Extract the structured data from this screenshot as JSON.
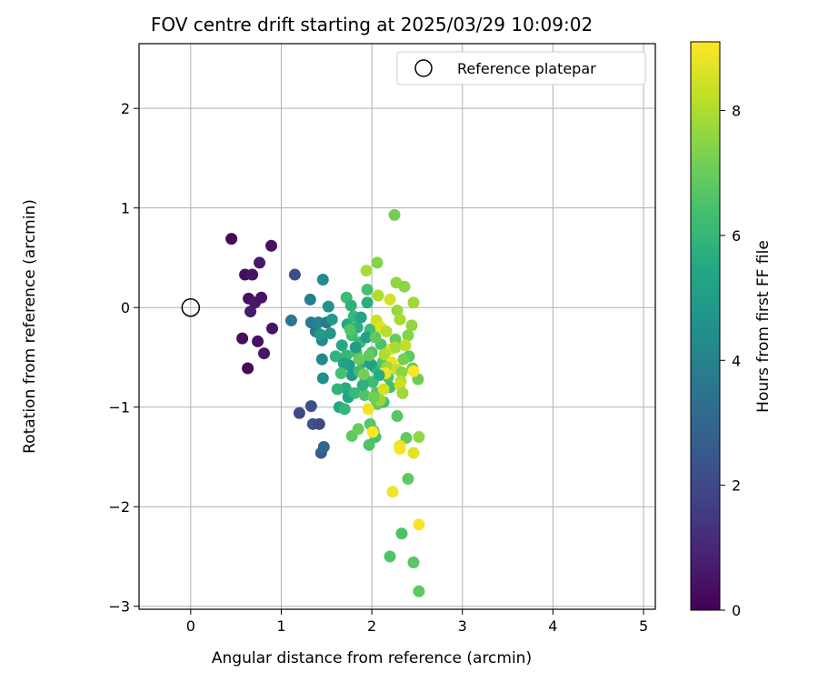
{
  "chart_data": {
    "type": "scatter",
    "title": "FOV centre drift starting at 2025/03/29 10:09:02",
    "xlabel": "Angular distance from reference (arcmin)",
    "ylabel": "Rotation from reference (arcmin)",
    "xlim": [
      -0.57,
      5.13
    ],
    "ylim": [
      -3.03,
      2.65
    ],
    "xticks": [
      0,
      1,
      2,
      3,
      4,
      5
    ],
    "yticks": [
      -3,
      -2,
      -1,
      0,
      1,
      2
    ],
    "xtick_labels": [
      "0",
      "1",
      "2",
      "3",
      "4",
      "5"
    ],
    "ytick_labels": [
      "−3",
      "−2",
      "−1",
      "0",
      "1",
      "2"
    ],
    "grid": true,
    "colormap": "viridis",
    "colorbar": {
      "label": "Hours from first FF file",
      "range": [
        0,
        9.1
      ],
      "ticks": [
        0,
        2,
        4,
        6,
        8
      ],
      "tick_labels": [
        "0",
        "2",
        "4",
        "6",
        "8"
      ]
    },
    "legend": {
      "position": "top-right",
      "entries": [
        "Reference platepar"
      ]
    },
    "reference_point": {
      "x": 0,
      "y": 0,
      "label": "Reference platepar"
    },
    "points": [
      {
        "x": 0.45,
        "y": 0.69,
        "t": 0.2
      },
      {
        "x": 0.89,
        "y": 0.62,
        "t": 0.4
      },
      {
        "x": 0.6,
        "y": 0.33,
        "t": 0.3
      },
      {
        "x": 0.68,
        "y": 0.33,
        "t": 0.5
      },
      {
        "x": 0.76,
        "y": 0.45,
        "t": 0.6
      },
      {
        "x": 0.64,
        "y": 0.09,
        "t": 0.4
      },
      {
        "x": 0.71,
        "y": 0.05,
        "t": 0.6
      },
      {
        "x": 0.78,
        "y": 0.1,
        "t": 0.5
      },
      {
        "x": 0.66,
        "y": -0.04,
        "t": 0.7
      },
      {
        "x": 0.9,
        "y": -0.21,
        "t": 0.5
      },
      {
        "x": 0.57,
        "y": -0.31,
        "t": 0.3
      },
      {
        "x": 0.74,
        "y": -0.34,
        "t": 0.4
      },
      {
        "x": 0.81,
        "y": -0.46,
        "t": 0.6
      },
      {
        "x": 0.63,
        "y": -0.61,
        "t": 0.2
      },
      {
        "x": 1.15,
        "y": 0.33,
        "t": 2.2
      },
      {
        "x": 1.11,
        "y": -0.13,
        "t": 3.6
      },
      {
        "x": 1.2,
        "y": -1.06,
        "t": 2.0
      },
      {
        "x": 1.33,
        "y": -0.99,
        "t": 2.2
      },
      {
        "x": 1.35,
        "y": -1.17,
        "t": 2.3
      },
      {
        "x": 1.42,
        "y": -1.17,
        "t": 2.0
      },
      {
        "x": 1.44,
        "y": -1.46,
        "t": 2.6
      },
      {
        "x": 1.47,
        "y": -1.4,
        "t": 3.0
      },
      {
        "x": 1.32,
        "y": 0.08,
        "t": 3.9
      },
      {
        "x": 1.46,
        "y": 0.28,
        "t": 4.3
      },
      {
        "x": 1.52,
        "y": 0.01,
        "t": 4.6
      },
      {
        "x": 1.33,
        "y": -0.15,
        "t": 3.7
      },
      {
        "x": 1.38,
        "y": -0.24,
        "t": 3.8
      },
      {
        "x": 1.41,
        "y": -0.15,
        "t": 4.1
      },
      {
        "x": 1.45,
        "y": -0.33,
        "t": 4.3
      },
      {
        "x": 1.5,
        "y": -0.15,
        "t": 3.6
      },
      {
        "x": 1.54,
        "y": -0.26,
        "t": 4.8
      },
      {
        "x": 1.45,
        "y": -0.52,
        "t": 4.2
      },
      {
        "x": 1.46,
        "y": -0.71,
        "t": 4.5
      },
      {
        "x": 1.43,
        "y": -0.27,
        "t": 5.0
      },
      {
        "x": 1.6,
        "y": -0.49,
        "t": 5.9
      },
      {
        "x": 1.67,
        "y": -0.38,
        "t": 5.5
      },
      {
        "x": 1.72,
        "y": -0.48,
        "t": 6.1
      },
      {
        "x": 1.75,
        "y": -0.58,
        "t": 5.0
      },
      {
        "x": 1.78,
        "y": -0.68,
        "t": 4.9
      },
      {
        "x": 1.71,
        "y": -0.81,
        "t": 5.6
      },
      {
        "x": 1.62,
        "y": -0.82,
        "t": 5.9
      },
      {
        "x": 1.74,
        "y": -0.9,
        "t": 5.3
      },
      {
        "x": 1.64,
        "y": -1.0,
        "t": 5.5
      },
      {
        "x": 1.7,
        "y": -1.02,
        "t": 6.0
      },
      {
        "x": 1.72,
        "y": 0.1,
        "t": 6.2
      },
      {
        "x": 1.77,
        "y": 0.02,
        "t": 5.8
      },
      {
        "x": 1.73,
        "y": -0.17,
        "t": 5.4
      },
      {
        "x": 1.8,
        "y": -0.09,
        "t": 6.0
      },
      {
        "x": 1.84,
        "y": -0.2,
        "t": 5.7
      },
      {
        "x": 1.78,
        "y": -0.28,
        "t": 6.3
      },
      {
        "x": 1.87,
        "y": -0.35,
        "t": 6.1
      },
      {
        "x": 1.83,
        "y": -0.45,
        "t": 6.4
      },
      {
        "x": 1.9,
        "y": -0.55,
        "t": 5.6
      },
      {
        "x": 1.86,
        "y": -0.64,
        "t": 6.2
      },
      {
        "x": 1.93,
        "y": -0.72,
        "t": 6.3
      },
      {
        "x": 1.81,
        "y": -0.86,
        "t": 6.1
      },
      {
        "x": 1.92,
        "y": -0.88,
        "t": 6.6
      },
      {
        "x": 1.95,
        "y": 0.05,
        "t": 5.7
      },
      {
        "x": 1.95,
        "y": 0.18,
        "t": 6.4
      },
      {
        "x": 1.98,
        "y": -0.22,
        "t": 6.2
      },
      {
        "x": 2.0,
        "y": -0.45,
        "t": 6.5
      },
      {
        "x": 2.03,
        "y": -0.6,
        "t": 6.0
      },
      {
        "x": 2.01,
        "y": -0.75,
        "t": 6.3
      },
      {
        "x": 2.05,
        "y": -0.86,
        "t": 6.6
      },
      {
        "x": 2.06,
        "y": -0.97,
        "t": 6.9
      },
      {
        "x": 1.98,
        "y": -1.17,
        "t": 6.7
      },
      {
        "x": 2.02,
        "y": -1.24,
        "t": 6.5
      },
      {
        "x": 1.97,
        "y": -1.38,
        "t": 6.6
      },
      {
        "x": 2.04,
        "y": -1.3,
        "t": 6.4
      },
      {
        "x": 1.78,
        "y": -1.29,
        "t": 6.8
      },
      {
        "x": 1.85,
        "y": -1.22,
        "t": 7.0
      },
      {
        "x": 2.1,
        "y": -0.37,
        "t": 6.5
      },
      {
        "x": 2.12,
        "y": -0.55,
        "t": 6.7
      },
      {
        "x": 2.18,
        "y": -0.7,
        "t": 6.6
      },
      {
        "x": 2.2,
        "y": -0.8,
        "t": 6.3
      },
      {
        "x": 2.13,
        "y": -0.95,
        "t": 6.4
      },
      {
        "x": 2.28,
        "y": -1.09,
        "t": 6.7
      },
      {
        "x": 2.38,
        "y": -1.31,
        "t": 6.9
      },
      {
        "x": 2.4,
        "y": -1.72,
        "t": 6.8
      },
      {
        "x": 2.2,
        "y": -2.5,
        "t": 6.6
      },
      {
        "x": 2.46,
        "y": -2.56,
        "t": 6.7
      },
      {
        "x": 2.33,
        "y": -2.27,
        "t": 6.5
      },
      {
        "x": 2.52,
        "y": -2.85,
        "t": 6.8
      },
      {
        "x": 2.51,
        "y": -0.72,
        "t": 7.1
      },
      {
        "x": 2.45,
        "y": -0.61,
        "t": 7.0
      },
      {
        "x": 2.41,
        "y": -0.49,
        "t": 6.8
      },
      {
        "x": 2.35,
        "y": -0.52,
        "t": 7.2
      },
      {
        "x": 2.26,
        "y": -0.32,
        "t": 7.0
      },
      {
        "x": 2.25,
        "y": 0.93,
        "t": 7.2
      },
      {
        "x": 2.06,
        "y": 0.45,
        "t": 7.4
      },
      {
        "x": 1.94,
        "y": 0.37,
        "t": 7.9
      },
      {
        "x": 2.27,
        "y": 0.25,
        "t": 7.6
      },
      {
        "x": 2.36,
        "y": 0.21,
        "t": 7.5
      },
      {
        "x": 2.07,
        "y": 0.12,
        "t": 8.0
      },
      {
        "x": 2.2,
        "y": 0.08,
        "t": 8.5
      },
      {
        "x": 2.46,
        "y": 0.05,
        "t": 7.8
      },
      {
        "x": 2.28,
        "y": -0.03,
        "t": 7.7
      },
      {
        "x": 2.05,
        "y": -0.13,
        "t": 8.4
      },
      {
        "x": 2.31,
        "y": -0.12,
        "t": 7.9
      },
      {
        "x": 2.1,
        "y": -0.2,
        "t": 8.7
      },
      {
        "x": 2.16,
        "y": -0.24,
        "t": 8.1
      },
      {
        "x": 2.44,
        "y": -0.18,
        "t": 7.6
      },
      {
        "x": 2.4,
        "y": -0.28,
        "t": 7.4
      },
      {
        "x": 2.37,
        "y": -0.38,
        "t": 8.2
      },
      {
        "x": 2.21,
        "y": -0.42,
        "t": 8.6
      },
      {
        "x": 2.26,
        "y": -0.4,
        "t": 7.9
      },
      {
        "x": 2.14,
        "y": -0.47,
        "t": 8.0
      },
      {
        "x": 2.22,
        "y": -0.55,
        "t": 8.8
      },
      {
        "x": 2.17,
        "y": -0.6,
        "t": 7.8
      },
      {
        "x": 2.28,
        "y": -0.62,
        "t": 8.3
      },
      {
        "x": 2.33,
        "y": -0.65,
        "t": 7.5
      },
      {
        "x": 2.46,
        "y": -0.64,
        "t": 9.0
      },
      {
        "x": 2.15,
        "y": -0.66,
        "t": 8.9
      },
      {
        "x": 2.32,
        "y": -0.74,
        "t": 8.1
      },
      {
        "x": 2.31,
        "y": -0.78,
        "t": 8.4
      },
      {
        "x": 2.34,
        "y": -0.86,
        "t": 7.8
      },
      {
        "x": 2.13,
        "y": -0.82,
        "t": 8.5
      },
      {
        "x": 2.09,
        "y": -0.93,
        "t": 7.7
      },
      {
        "x": 1.96,
        "y": -1.02,
        "t": 8.9
      },
      {
        "x": 2.01,
        "y": -1.25,
        "t": 9.1
      },
      {
        "x": 2.31,
        "y": -1.39,
        "t": 8.8
      },
      {
        "x": 2.31,
        "y": -1.42,
        "t": 9.0
      },
      {
        "x": 2.46,
        "y": -1.46,
        "t": 8.7
      },
      {
        "x": 2.52,
        "y": -1.3,
        "t": 7.6
      },
      {
        "x": 2.23,
        "y": -1.85,
        "t": 8.9
      },
      {
        "x": 2.52,
        "y": -2.18,
        "t": 9.0
      },
      {
        "x": 1.56,
        "y": -0.12,
        "t": 4.9
      },
      {
        "x": 1.69,
        "y": -0.56,
        "t": 5.2
      },
      {
        "x": 1.82,
        "y": -0.4,
        "t": 5.0
      },
      {
        "x": 1.88,
        "y": -0.1,
        "t": 5.4
      },
      {
        "x": 1.94,
        "y": -0.3,
        "t": 5.2
      },
      {
        "x": 1.99,
        "y": -0.57,
        "t": 5.1
      },
      {
        "x": 2.08,
        "y": -0.68,
        "t": 5.6
      },
      {
        "x": 1.9,
        "y": -0.78,
        "t": 5.8
      },
      {
        "x": 1.76,
        "y": -0.22,
        "t": 6.6
      },
      {
        "x": 1.66,
        "y": -0.66,
        "t": 6.4
      },
      {
        "x": 1.97,
        "y": -0.48,
        "t": 6.9
      },
      {
        "x": 2.04,
        "y": -0.3,
        "t": 6.8
      },
      {
        "x": 1.86,
        "y": -0.52,
        "t": 7.0
      },
      {
        "x": 2.02,
        "y": -0.9,
        "t": 7.1
      },
      {
        "x": 1.91,
        "y": -0.67,
        "t": 7.2
      }
    ]
  }
}
